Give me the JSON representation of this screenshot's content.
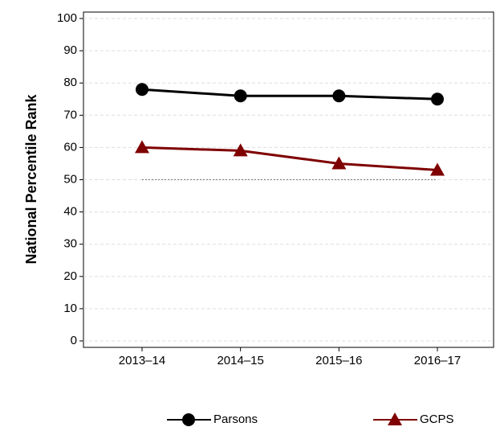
{
  "chart_data": {
    "type": "line",
    "y_label": "National Percentile Rank",
    "categories": [
      "2013–14",
      "2014–15",
      "2015–16",
      "2016–17"
    ],
    "series": [
      {
        "name": "Parsons",
        "color": "#000000",
        "marker": "circle",
        "values": [
          78,
          76,
          76,
          75
        ]
      },
      {
        "name": "GCPS",
        "color": "#7f0000",
        "marker": "triangle",
        "values": [
          60,
          59,
          55,
          53
        ]
      }
    ],
    "reference_line": 50,
    "ylim": [
      -2,
      102
    ],
    "yticks": [
      0,
      10,
      20,
      30,
      40,
      50,
      60,
      70,
      80,
      90,
      100
    ],
    "grid": true
  }
}
